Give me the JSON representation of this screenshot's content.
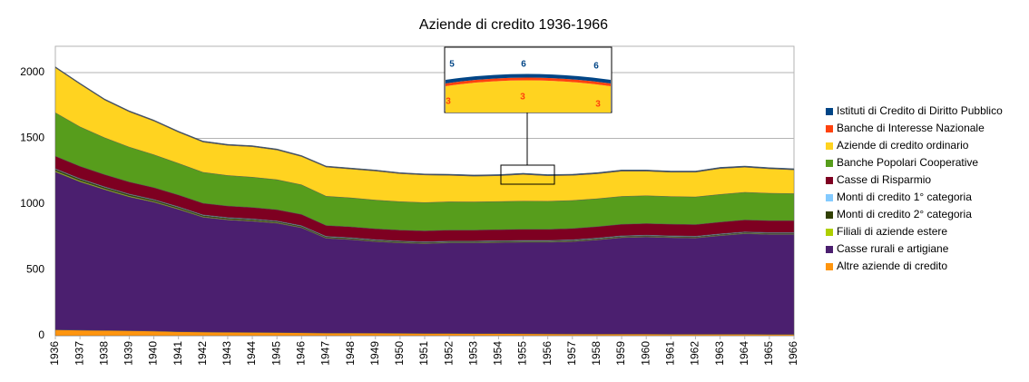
{
  "chart_data": {
    "type": "stacked_area",
    "title": "Aziende di credito 1936-1966",
    "categories": [
      "1936",
      "1937",
      "1938",
      "1939",
      "1940",
      "1941",
      "1942",
      "1943",
      "1944",
      "1945",
      "1946",
      "1947",
      "1948",
      "1949",
      "1950",
      "1951",
      "1952",
      "1953",
      "1954",
      "1955",
      "1956",
      "1957",
      "1958",
      "1959",
      "1960",
      "1961",
      "1962",
      "1963",
      "1964",
      "1965",
      "1966"
    ],
    "ylim": [
      0,
      2200
    ],
    "yticks": [
      0,
      500,
      1000,
      1500,
      2000
    ],
    "grid": true,
    "legend": "right",
    "series": [
      {
        "name": "Altre aziende di credito",
        "color": "#ff950e",
        "values": [
          45,
          42,
          40,
          38,
          35,
          30,
          28,
          26,
          25,
          24,
          22,
          20,
          20,
          19,
          18,
          17,
          17,
          16,
          16,
          15,
          14,
          13,
          12,
          12,
          12,
          11,
          11,
          11,
          11,
          10,
          10
        ]
      },
      {
        "name": "Casse rurali e artigiane",
        "color": "#4b1f6f",
        "values": [
          1200,
          1128,
          1070,
          1017,
          980,
          930,
          872,
          854,
          845,
          831,
          798,
          720,
          710,
          696,
          687,
          683,
          688,
          689,
          692,
          695,
          696,
          702,
          716,
          733,
          738,
          734,
          731,
          749,
          764,
          760,
          760
        ]
      },
      {
        "name": "Filiali di aziende estere",
        "color": "#aecf00",
        "values": [
          8,
          8,
          7,
          7,
          6,
          6,
          5,
          5,
          5,
          5,
          4,
          4,
          4,
          4,
          4,
          4,
          4,
          4,
          4,
          4,
          4,
          4,
          4,
          4,
          4,
          4,
          4,
          4,
          4,
          4,
          4
        ]
      },
      {
        "name": "Monti di credito 2° categoria",
        "color": "#314004",
        "values": [
          12,
          12,
          11,
          11,
          10,
          10,
          9,
          9,
          9,
          8,
          8,
          7,
          7,
          7,
          7,
          6,
          6,
          6,
          6,
          6,
          6,
          6,
          6,
          6,
          6,
          6,
          6,
          6,
          6,
          6,
          6
        ]
      },
      {
        "name": "Monti di credito 1° categoria",
        "color": "#83caff",
        "values": [
          5,
          5,
          5,
          5,
          5,
          5,
          5,
          5,
          5,
          5,
          5,
          5,
          5,
          5,
          5,
          5,
          5,
          5,
          5,
          5,
          5,
          5,
          5,
          5,
          5,
          5,
          5,
          5,
          5,
          5,
          5
        ]
      },
      {
        "name": "Casse di Risparmio",
        "color": "#7e0021",
        "values": [
          95,
          93,
          92,
          91,
          90,
          89,
          88,
          87,
          86,
          85,
          85,
          82,
          82,
          82,
          82,
          82,
          83,
          83,
          83,
          84,
          84,
          85,
          86,
          87,
          88,
          88,
          88,
          89,
          90,
          90,
          90
        ]
      },
      {
        "name": "Banche Popolari Cooperative",
        "color": "#579d1c",
        "values": [
          330,
          300,
          280,
          265,
          250,
          240,
          235,
          232,
          230,
          228,
          225,
          222,
          220,
          218,
          216,
          215,
          215,
          214,
          214,
          214,
          213,
          213,
          212,
          212,
          211,
          210,
          210,
          210,
          210,
          208,
          205
        ]
      },
      {
        "name": "Aziende di credito ordinario",
        "color": "#ffd320",
        "values": [
          342,
          324,
          287,
          268,
          256,
          237,
          230,
          229,
          232,
          226,
          215,
          222,
          219,
          221,
          213,
          210,
          201,
          196,
          196,
          203,
          194,
          191,
          190,
          192,
          187,
          185,
          188,
          197,
          191,
          186,
          181
        ]
      },
      {
        "name": "Banche di Interesse Nazionale",
        "color": "#ff420e",
        "values": [
          3,
          3,
          3,
          3,
          3,
          3,
          3,
          3,
          3,
          3,
          3,
          3,
          3,
          3,
          3,
          3,
          3,
          3,
          3,
          3,
          3,
          3,
          3,
          3,
          3,
          3,
          3,
          3,
          3,
          3,
          3
        ]
      },
      {
        "name": "Istituti di Credito di Diritto Pubblico",
        "color": "#004586",
        "values": [
          5,
          5,
          5,
          5,
          5,
          5,
          5,
          5,
          5,
          5,
          5,
          5,
          5,
          5,
          5,
          5,
          6,
          6,
          6,
          6,
          6,
          6,
          6,
          6,
          6,
          6,
          6,
          6,
          6,
          6,
          6
        ]
      }
    ],
    "inset_labels": [
      "5",
      "6",
      "6",
      "3",
      "3",
      "3"
    ]
  }
}
